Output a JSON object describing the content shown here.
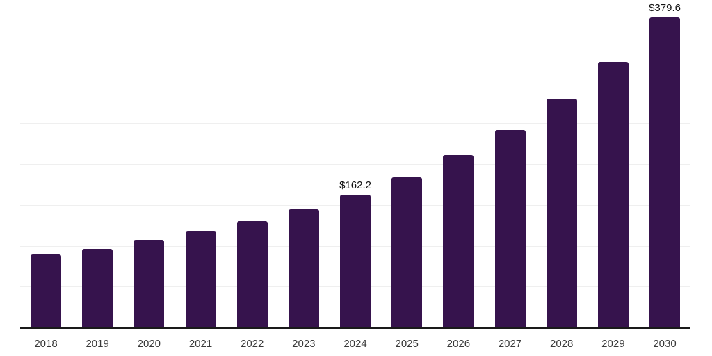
{
  "chart_data": {
    "type": "bar",
    "title": "",
    "xlabel": "",
    "ylabel": "",
    "categories": [
      "2018",
      "2019",
      "2020",
      "2021",
      "2022",
      "2023",
      "2024",
      "2025",
      "2026",
      "2027",
      "2028",
      "2029",
      "2030"
    ],
    "values": [
      89.2,
      96.0,
      107.0,
      118.0,
      130.0,
      145.0,
      162.2,
      184.2,
      211.0,
      241.5,
      279.6,
      324.8,
      379.6
    ],
    "data_labels": [
      "",
      "",
      "",
      "",
      "",
      "",
      "$162.2",
      "",
      "",
      "",
      "",
      "",
      "$379.6"
    ],
    "ylim": [
      0,
      400
    ],
    "grid_step": 50,
    "grid_on": true,
    "legend": null,
    "colors": {
      "bar": "#36134d",
      "gridline": "#efefef",
      "axis_line": "#1a1a1a",
      "tick_label": "#3a3a3a",
      "data_label": "#111111"
    },
    "background": "#ffffff"
  }
}
